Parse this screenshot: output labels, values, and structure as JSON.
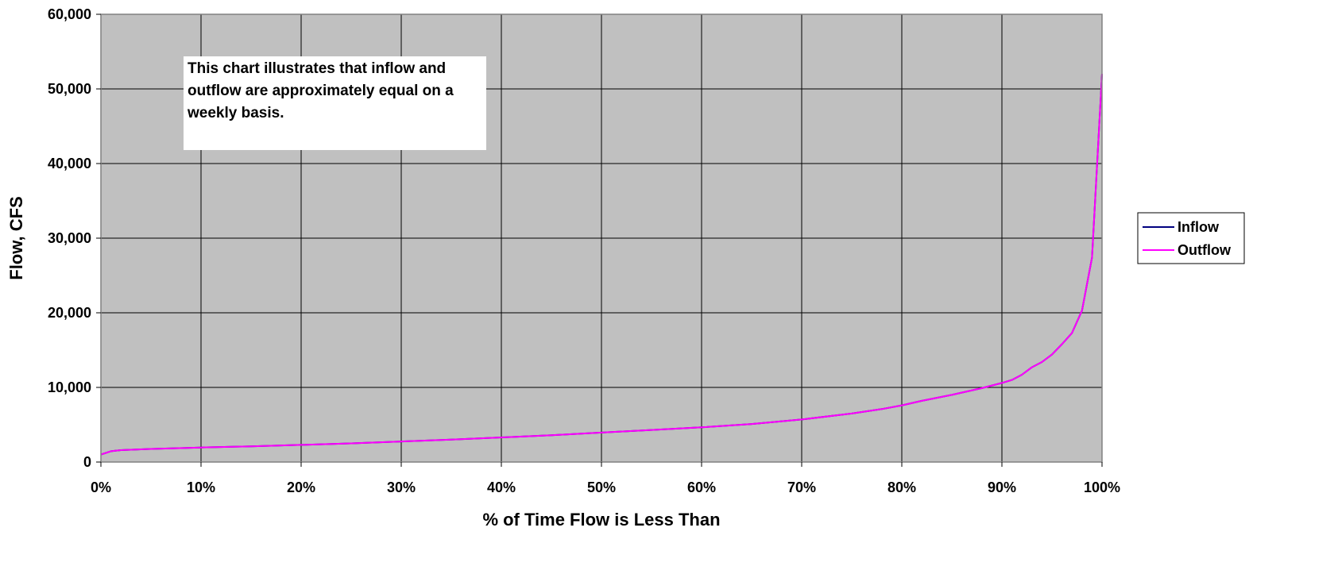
{
  "chart_data": {
    "type": "line",
    "title": "",
    "xlabel": "% of Time Flow is Less Than",
    "ylabel": "Flow, CFS",
    "xlim": [
      0,
      100
    ],
    "ylim": [
      0,
      60000
    ],
    "x_ticks": [
      "0%",
      "10%",
      "20%",
      "30%",
      "40%",
      "50%",
      "60%",
      "70%",
      "80%",
      "90%",
      "100%"
    ],
    "y_ticks": [
      "0",
      "10,000",
      "20,000",
      "30,000",
      "40,000",
      "50,000",
      "60,000"
    ],
    "grid": true,
    "plot_background": "#c0c0c0",
    "legend_position": "right",
    "annotation": {
      "lines": [
        "This chart illustrates that inflow and",
        "outflow are approximately equal on a",
        "weekly basis."
      ]
    },
    "series": [
      {
        "name": "Inflow",
        "color": "#000080",
        "x": [
          0,
          1,
          2,
          5,
          10,
          15,
          20,
          25,
          30,
          35,
          40,
          45,
          50,
          55,
          60,
          65,
          70,
          75,
          78,
          80,
          82,
          85,
          88,
          90,
          91,
          92,
          93,
          94,
          95,
          96,
          97,
          98,
          99,
          100
        ],
        "y": [
          1000,
          1450,
          1600,
          1750,
          1950,
          2100,
          2300,
          2500,
          2750,
          3000,
          3300,
          3600,
          3950,
          4300,
          4650,
          5100,
          5700,
          6500,
          7100,
          7600,
          8200,
          9000,
          9900,
          10600,
          11000,
          11700,
          12700,
          13400,
          14400,
          15800,
          17300,
          20300,
          27400,
          52000
        ]
      },
      {
        "name": "Outflow",
        "color": "#ff00ff",
        "x": [
          0,
          1,
          2,
          5,
          10,
          15,
          20,
          25,
          30,
          35,
          40,
          45,
          50,
          55,
          60,
          65,
          70,
          75,
          78,
          80,
          82,
          85,
          88,
          90,
          91,
          92,
          93,
          94,
          95,
          96,
          97,
          98,
          99,
          100
        ],
        "y": [
          1000,
          1450,
          1600,
          1750,
          1950,
          2100,
          2300,
          2500,
          2750,
          3000,
          3300,
          3600,
          3950,
          4300,
          4650,
          5100,
          5700,
          6500,
          7100,
          7600,
          8200,
          9000,
          9900,
          10600,
          11000,
          11700,
          12700,
          13400,
          14400,
          15800,
          17300,
          20300,
          27400,
          52000
        ]
      }
    ]
  }
}
